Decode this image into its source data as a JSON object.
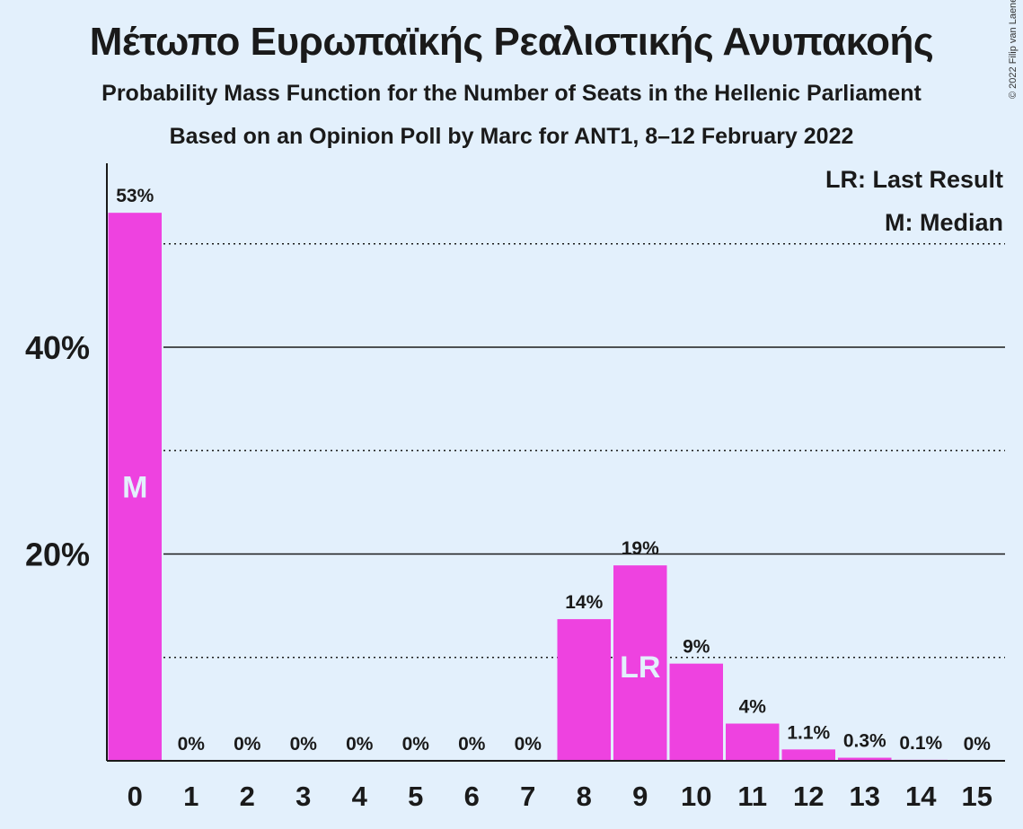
{
  "title": "Μέτωπο Ευρωπαϊκής Ρεαλιστικής Ανυπακοής",
  "subtitle": "Probability Mass Function for the Number of Seats in the Hellenic Parliament",
  "subtitle2": "Based on an Opinion Poll by Marc for ANT1, 8–12 February 2022",
  "copyright": "© 2022 Filip van Laenen",
  "legend": {
    "last_result": "LR: Last Result",
    "median": "M: Median"
  },
  "chart_data": {
    "type": "bar",
    "categories": [
      "0",
      "1",
      "2",
      "3",
      "4",
      "5",
      "6",
      "7",
      "8",
      "9",
      "10",
      "11",
      "12",
      "13",
      "14",
      "15"
    ],
    "values": [
      53,
      0,
      0,
      0,
      0,
      0,
      0,
      0,
      13.7,
      18.9,
      9.4,
      3.6,
      1.1,
      0.3,
      0.1,
      0
    ],
    "labels": [
      "53%",
      "0%",
      "0%",
      "0%",
      "0%",
      "0%",
      "0%",
      "0%",
      "14%",
      "19%",
      "9%",
      "4%",
      "1.1%",
      "0.3%",
      "0.1%",
      "0%"
    ],
    "ylim": [
      0,
      57
    ],
    "yticks": [
      20,
      40
    ],
    "ytick_labels": [
      "20%",
      "40%"
    ],
    "minor_gridlines": [
      10,
      30,
      50
    ],
    "median_index": 0,
    "median_mark": "M",
    "last_result_index": 9,
    "last_result_mark": "LR",
    "bar_color": "#ee42e0",
    "legend_position": "top-right"
  }
}
